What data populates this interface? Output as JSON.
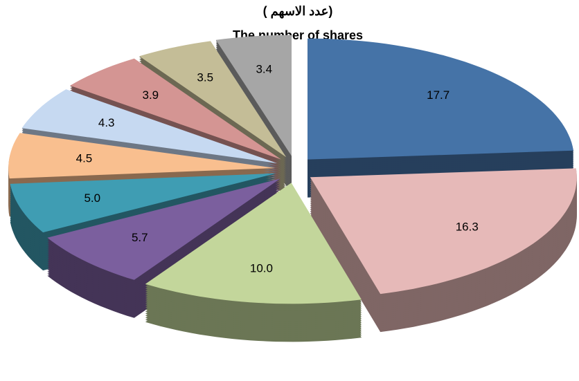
{
  "chart_data": {
    "type": "pie",
    "title": "(عدد الاسهم )",
    "subtitle": "The number of shares",
    "categories": [
      null,
      null,
      null,
      null,
      null,
      null,
      null,
      null,
      null,
      null
    ],
    "values": [
      17.7,
      16.3,
      10.0,
      5.7,
      5.0,
      4.5,
      4.3,
      3.9,
      3.5,
      3.4
    ],
    "value_labels": [
      "17.7",
      "16.3",
      "10.0",
      "5.7",
      "5.0",
      "4.5",
      "4.3",
      "3.9",
      "3.5",
      "3.4"
    ],
    "colors": [
      "#4573a7",
      "#e6b9b8",
      "#c3d69b",
      "#7b5f9e",
      "#3f9db3",
      "#f9bf8f",
      "#c6d9f1",
      "#d49593",
      "#c4bd97",
      "#a6a6a6"
    ]
  }
}
